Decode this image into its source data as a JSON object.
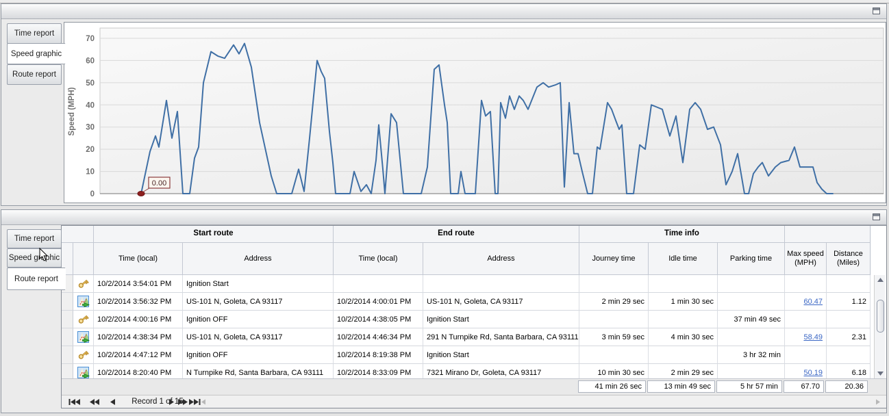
{
  "panels": {
    "top": {
      "tabs": [
        {
          "label": "Time report",
          "selected": false
        },
        {
          "label": "Speed graphic",
          "selected": true
        },
        {
          "label": "Route report",
          "selected": false
        }
      ]
    },
    "bottom": {
      "tabs": [
        {
          "label": "Time report",
          "selected": false
        },
        {
          "label": "Speed graphic",
          "selected": false
        },
        {
          "label": "Route report",
          "selected": true
        }
      ]
    }
  },
  "chart_data": {
    "type": "line",
    "title": "",
    "xlabel": "",
    "ylabel": "Speed (MPH)",
    "ylim": [
      0,
      70
    ],
    "yticks": [
      0,
      10,
      20,
      30,
      40,
      50,
      60,
      70
    ],
    "grid": true,
    "legend": "none",
    "x_unit": "time (axis unlabeled; x stored as plot pixel position 205-1215)",
    "line_color": "#3f6fa5",
    "marker_color": "#8d1f1f",
    "annotation": {
      "text": "0.00",
      "at_first_point": true
    },
    "points": [
      [
        205,
        0
      ],
      [
        218,
        19
      ],
      [
        226,
        26
      ],
      [
        231,
        21
      ],
      [
        242,
        42
      ],
      [
        250,
        25
      ],
      [
        258,
        37
      ],
      [
        266,
        0
      ],
      [
        276,
        0
      ],
      [
        283,
        16
      ],
      [
        289,
        21
      ],
      [
        296,
        50
      ],
      [
        307,
        64
      ],
      [
        317,
        62
      ],
      [
        327,
        61
      ],
      [
        340,
        67
      ],
      [
        348,
        63
      ],
      [
        356,
        67.7
      ],
      [
        366,
        57
      ],
      [
        378,
        32
      ],
      [
        395,
        8
      ],
      [
        403,
        0
      ],
      [
        425,
        0
      ],
      [
        435,
        11
      ],
      [
        443,
        1
      ],
      [
        451,
        25
      ],
      [
        462,
        60
      ],
      [
        468,
        55
      ],
      [
        473,
        52
      ],
      [
        480,
        28
      ],
      [
        485,
        14
      ],
      [
        489,
        0
      ],
      [
        510,
        0
      ],
      [
        516,
        10
      ],
      [
        526,
        1
      ],
      [
        534,
        4
      ],
      [
        541,
        0
      ],
      [
        548,
        15
      ],
      [
        552,
        31
      ],
      [
        558,
        11
      ],
      [
        561,
        0
      ],
      [
        570,
        36
      ],
      [
        578,
        32
      ],
      [
        588,
        0
      ],
      [
        614,
        0
      ],
      [
        623,
        12
      ],
      [
        633,
        56
      ],
      [
        640,
        58
      ],
      [
        648,
        40
      ],
      [
        652,
        32
      ],
      [
        657,
        0
      ],
      [
        668,
        0
      ],
      [
        672,
        10
      ],
      [
        678,
        0
      ],
      [
        693,
        0
      ],
      [
        702,
        42
      ],
      [
        708,
        35
      ],
      [
        715,
        37
      ],
      [
        722,
        0
      ],
      [
        726,
        0
      ],
      [
        730,
        41
      ],
      [
        737,
        34
      ],
      [
        743,
        44
      ],
      [
        750,
        38
      ],
      [
        757,
        44
      ],
      [
        763,
        42
      ],
      [
        770,
        38
      ],
      [
        783,
        48
      ],
      [
        792,
        50
      ],
      [
        800,
        48
      ],
      [
        810,
        49
      ],
      [
        817,
        50
      ],
      [
        823,
        3
      ],
      [
        830,
        41
      ],
      [
        837,
        18
      ],
      [
        843,
        18
      ],
      [
        849,
        10
      ],
      [
        857,
        0
      ],
      [
        864,
        0
      ],
      [
        871,
        21
      ],
      [
        875,
        20
      ],
      [
        886,
        41
      ],
      [
        892,
        38
      ],
      [
        898,
        33
      ],
      [
        903,
        29
      ],
      [
        907,
        31
      ],
      [
        914,
        0
      ],
      [
        924,
        0
      ],
      [
        933,
        22
      ],
      [
        941,
        20
      ],
      [
        950,
        40
      ],
      [
        958,
        39
      ],
      [
        966,
        38
      ],
      [
        977,
        26
      ],
      [
        986,
        35
      ],
      [
        996,
        14
      ],
      [
        1006,
        38
      ],
      [
        1014,
        41
      ],
      [
        1022,
        38
      ],
      [
        1032,
        29
      ],
      [
        1041,
        30
      ],
      [
        1051,
        22
      ],
      [
        1059,
        4
      ],
      [
        1068,
        10
      ],
      [
        1076,
        18
      ],
      [
        1086,
        0
      ],
      [
        1092,
        0
      ],
      [
        1099,
        9
      ],
      [
        1106,
        12
      ],
      [
        1112,
        14
      ],
      [
        1121,
        8
      ],
      [
        1131,
        12
      ],
      [
        1139,
        14
      ],
      [
        1151,
        15
      ],
      [
        1159,
        21
      ],
      [
        1167,
        12
      ],
      [
        1178,
        12
      ],
      [
        1186,
        12
      ],
      [
        1192,
        5
      ],
      [
        1199,
        2
      ],
      [
        1206,
        0
      ],
      [
        1215,
        0
      ]
    ]
  },
  "table": {
    "bands": [
      "Start route",
      "End route",
      "Time info"
    ],
    "columns": [
      "Time (local)",
      "Address",
      "Time (local)",
      "Address",
      "Journey time",
      "Idle time",
      "Parking time",
      "Max speed (MPH)",
      "Distance (Miles)"
    ],
    "rows": [
      {
        "icon": "key-icon",
        "start_time": "10/2/2014 3:54:01 PM",
        "start_addr": "Ignition Start",
        "end_time": "",
        "end_addr": "",
        "journey": "",
        "idle": "",
        "parking": "",
        "max_speed": "",
        "max_link": false,
        "distance": ""
      },
      {
        "icon": "map-route-icon",
        "start_time": "10/2/2014 3:56:32 PM",
        "start_addr": "US-101 N, Goleta, CA 93117",
        "end_time": "10/2/2014 4:00:01 PM",
        "end_addr": "US-101 N, Goleta, CA 93117",
        "journey": "2 min 29 sec",
        "idle": "1 min 30 sec",
        "parking": "",
        "max_speed": "60.47",
        "max_link": true,
        "distance": "1.12"
      },
      {
        "icon": "key-icon",
        "start_time": "10/2/2014 4:00:16 PM",
        "start_addr": "Ignition OFF",
        "end_time": "10/2/2014 4:38:05 PM",
        "end_addr": "Ignition Start",
        "journey": "",
        "idle": "",
        "parking": "37 min 49 sec",
        "max_speed": "",
        "max_link": false,
        "distance": ""
      },
      {
        "icon": "map-route-icon",
        "start_time": "10/2/2014 4:38:34 PM",
        "start_addr": "US-101 N, Goleta, CA 93117",
        "end_time": "10/2/2014 4:46:34 PM",
        "end_addr": "291 N Turnpike Rd, Santa Barbara, CA 93111",
        "journey": "3 min 59 sec",
        "idle": "4 min 30 sec",
        "parking": "",
        "max_speed": "58.49",
        "max_link": true,
        "distance": "2.31"
      },
      {
        "icon": "key-icon",
        "start_time": "10/2/2014 4:47:12 PM",
        "start_addr": "Ignition OFF",
        "end_time": "10/2/2014 8:19:38 PM",
        "end_addr": "Ignition Start",
        "journey": "",
        "idle": "",
        "parking": "3 hr 32 min",
        "max_speed": "",
        "max_link": false,
        "distance": ""
      },
      {
        "icon": "map-route-icon",
        "start_time": "10/2/2014 8:20:40 PM",
        "start_addr": "N Turnpike Rd, Santa Barbara, CA 93111",
        "end_time": "10/2/2014 8:33:09 PM",
        "end_addr": "7321 Mirano Dr, Goleta, CA 93117",
        "journey": "10 min 30 sec",
        "idle": "2 min 29 sec",
        "parking": "",
        "max_speed": "50.19",
        "max_link": true,
        "distance": "6.18"
      }
    ],
    "summary": {
      "journey": "41 min 26 sec",
      "idle": "13 min 49 sec",
      "parking": "5 hr 57 min",
      "max_speed": "67.70",
      "distance": "20.36"
    },
    "navigator": {
      "record_text": "Record 1 of 15",
      "buttons": [
        "first-record",
        "prev-page",
        "prev-record",
        "next-record",
        "next-page",
        "last-record"
      ]
    }
  }
}
